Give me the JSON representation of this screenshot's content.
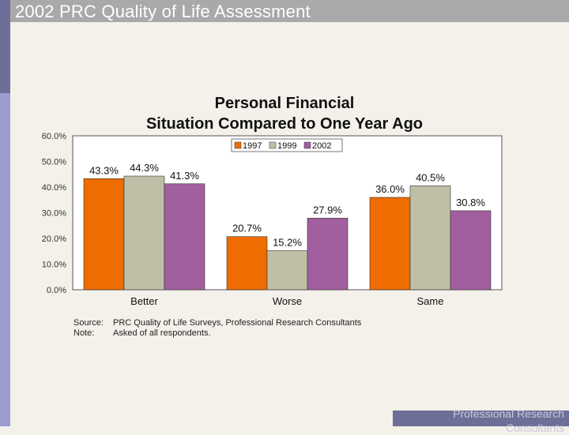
{
  "slide": {
    "title": "2002 PRC Quality of Life Assessment",
    "footer": "Professional Research Consultants"
  },
  "colors": {
    "series_1997": "#ee6c00",
    "series_1999": "#bfbfa7",
    "series_2002": "#a25fa0",
    "plot_bg": "#ffffff"
  },
  "notes": {
    "source_label": "Source:",
    "source_text": "PRC Quality of Life Surveys, Professional Research Consultants",
    "note_label": "Note:",
    "note_text": "Asked of all respondents."
  },
  "chart_data": {
    "type": "bar",
    "title_line1": "Personal Financial",
    "title_line2": "Situation Compared to One Year Ago",
    "categories": [
      "Better",
      "Worse",
      "Same"
    ],
    "series": [
      {
        "name": "1997",
        "values": [
          43.3,
          20.7,
          36.0
        ]
      },
      {
        "name": "1999",
        "values": [
          44.3,
          15.2,
          40.5
        ]
      },
      {
        "name": "2002",
        "values": [
          41.3,
          27.9,
          30.8
        ]
      }
    ],
    "data_labels": [
      [
        "43.3%",
        "20.7%",
        "36.0%"
      ],
      [
        "44.3%",
        "15.2%",
        "40.5%"
      ],
      [
        "41.3%",
        "27.9%",
        "30.8%"
      ]
    ],
    "ylim": [
      0,
      60
    ],
    "yticks": [
      0,
      10,
      20,
      30,
      40,
      50,
      60
    ],
    "ytick_labels": [
      "0.0%",
      "10.0%",
      "20.0%",
      "30.0%",
      "40.0%",
      "50.0%",
      "60.0%"
    ],
    "xlabel": "",
    "ylabel": "",
    "legend_position": "top-center",
    "grid": false
  }
}
